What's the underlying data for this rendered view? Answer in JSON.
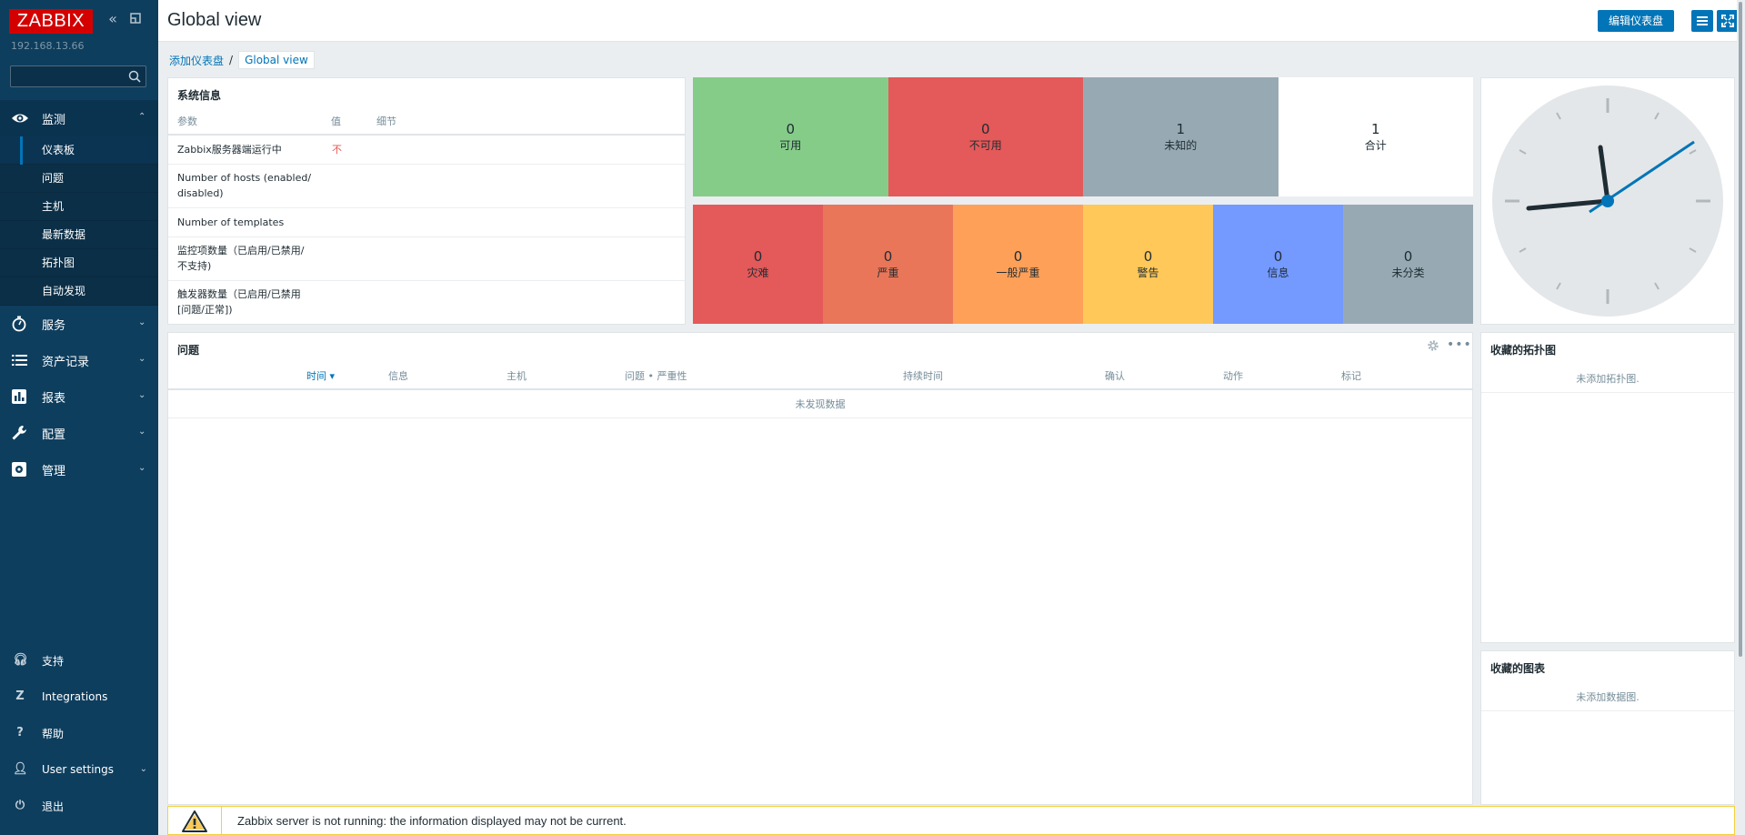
{
  "app": {
    "logo": "ZABBIX",
    "server_ip": "192.168.13.66"
  },
  "sidebar": {
    "search_placeholder": "",
    "menu": [
      {
        "label": "监测",
        "icon": "eye-icon",
        "expanded": true
      },
      {
        "label": "服务",
        "icon": "stopwatch-icon"
      },
      {
        "label": "资产记录",
        "icon": "list-icon"
      },
      {
        "label": "报表",
        "icon": "bar-chart-icon"
      },
      {
        "label": "配置",
        "icon": "wrench-icon"
      },
      {
        "label": "管理",
        "icon": "gear-box-icon"
      }
    ],
    "submenu": [
      "仪表板",
      "问题",
      "主机",
      "最新数据",
      "拓扑图",
      "自动发现"
    ],
    "bottom": [
      {
        "label": "支持",
        "icon": "headset-icon"
      },
      {
        "label": "Integrations",
        "icon": "integrations-icon"
      },
      {
        "label": "帮助",
        "icon": "help-icon"
      },
      {
        "label": "User settings",
        "icon": "user-icon"
      },
      {
        "label": "退出",
        "icon": "power-icon"
      }
    ]
  },
  "header": {
    "title": "Global view",
    "edit_label": "编辑仪表盘"
  },
  "breadcrumb": {
    "parent": "添加仪表盘",
    "sep": "/",
    "current": "Global view"
  },
  "sysinfo": {
    "title": "系统信息",
    "columns": [
      "参数",
      "值",
      "细节"
    ],
    "rows": [
      {
        "param": "Zabbix服务器端运行中",
        "value": "不"
      },
      {
        "param": "Number of hosts (enabled/\ndisabled)",
        "value": ""
      },
      {
        "param": "Number of templates",
        "value": ""
      },
      {
        "param": "监控项数量（已启用/已禁用/\n不支持)",
        "value": ""
      },
      {
        "param": "触发器数量（已启用/已禁用\n[问题/正常])",
        "value": ""
      }
    ]
  },
  "host_availability": [
    {
      "count": "0",
      "label": "可用",
      "color": "#86cc89"
    },
    {
      "count": "0",
      "label": "不可用",
      "color": "#e45959"
    },
    {
      "count": "1",
      "label": "未知的",
      "color": "#97aab3"
    },
    {
      "count": "1",
      "label": "合计",
      "color": "#ffffff"
    }
  ],
  "problem_severity": [
    {
      "count": "0",
      "label": "灾难",
      "color": "#e45959"
    },
    {
      "count": "0",
      "label": "严重",
      "color": "#e97659"
    },
    {
      "count": "0",
      "label": "一般严重",
      "color": "#ffa059"
    },
    {
      "count": "0",
      "label": "警告",
      "color": "#ffc859"
    },
    {
      "count": "0",
      "label": "信息",
      "color": "#7499ff"
    },
    {
      "count": "0",
      "label": "未分类",
      "color": "#97aab3"
    }
  ],
  "problems": {
    "title": "问题",
    "columns": [
      "时间 ▾",
      "信息",
      "主机",
      "问题 • 严重性",
      "持续时间",
      "确认",
      "动作",
      "标记"
    ],
    "empty": "未发现数据"
  },
  "fav_maps": {
    "title": "收藏的拓扑图",
    "empty": "未添加拓扑图."
  },
  "fav_graphs": {
    "title": "收藏的图表",
    "empty": "未添加数据图."
  },
  "warning": {
    "text": "Zabbix server is not running: the information displayed may not be current."
  },
  "colors": {
    "sidebar": "#0e3e5e",
    "accent": "#0275b8",
    "brand": "#d40000"
  }
}
